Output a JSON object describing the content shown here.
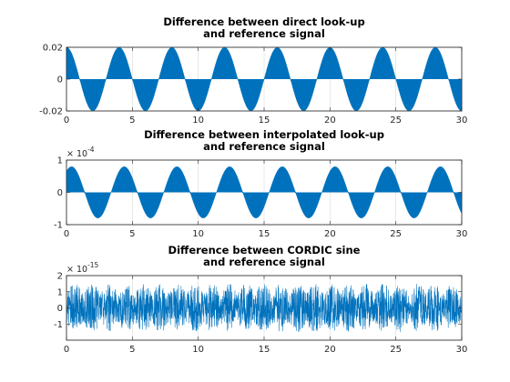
{
  "chart_data": [
    {
      "type": "line",
      "title_lines": [
        "Difference between direct look-up",
        "and reference signal"
      ],
      "xlim": [
        0,
        30
      ],
      "ylim": [
        -0.02,
        0.02
      ],
      "xticks": [
        0,
        5,
        10,
        15,
        20,
        25,
        30
      ],
      "xtick_labels": [
        "0",
        "5",
        "10",
        "15",
        "20",
        "25",
        "30"
      ],
      "yticks": [
        -0.02,
        0,
        0.02
      ],
      "ytick_labels": [
        "-0.02",
        "0",
        "0.02"
      ],
      "exponent": null,
      "grid": "vertical",
      "color": "#0072BD",
      "envelope_shape": "dense oscillation filling a rectified sine envelope (period 4, amplitude 0.02)"
    },
    {
      "type": "line",
      "title_lines": [
        "Difference between interpolated look-up",
        "and reference signal"
      ],
      "xlim": [
        0,
        30
      ],
      "ylim": [
        -1,
        1
      ],
      "xticks": [
        0,
        5,
        10,
        15,
        20,
        25,
        30
      ],
      "xtick_labels": [
        "0",
        "5",
        "10",
        "15",
        "20",
        "25",
        "30"
      ],
      "yticks": [
        -1,
        0,
        1
      ],
      "ytick_labels": [
        "-1",
        "0",
        "1"
      ],
      "exponent": {
        "base": "× 10",
        "power": "-4"
      },
      "grid": "vertical",
      "color": "#0072BD",
      "envelope_shape": "dense oscillation filling a rectified sine envelope (period 4, amplitude 0.8e-4)"
    },
    {
      "type": "line",
      "title_lines": [
        "Difference between CORDIC sine",
        "and reference signal"
      ],
      "xlim": [
        0,
        30
      ],
      "ylim": [
        -2,
        2
      ],
      "xticks": [
        0,
        5,
        10,
        15,
        20,
        25,
        30
      ],
      "xtick_labels": [
        "0",
        "5",
        "10",
        "15",
        "20",
        "25",
        "30"
      ],
      "yticks": [
        -1,
        0,
        1,
        2
      ],
      "ytick_labels": [
        "-1",
        "0",
        "1",
        "2"
      ],
      "exponent": {
        "base": "× 10",
        "power": "-15"
      },
      "grid": "vertical",
      "color": "#0072BD",
      "envelope_shape": "noise-like oscillation within roughly ±1.5e-15, peaks up to ±2e-15"
    }
  ]
}
